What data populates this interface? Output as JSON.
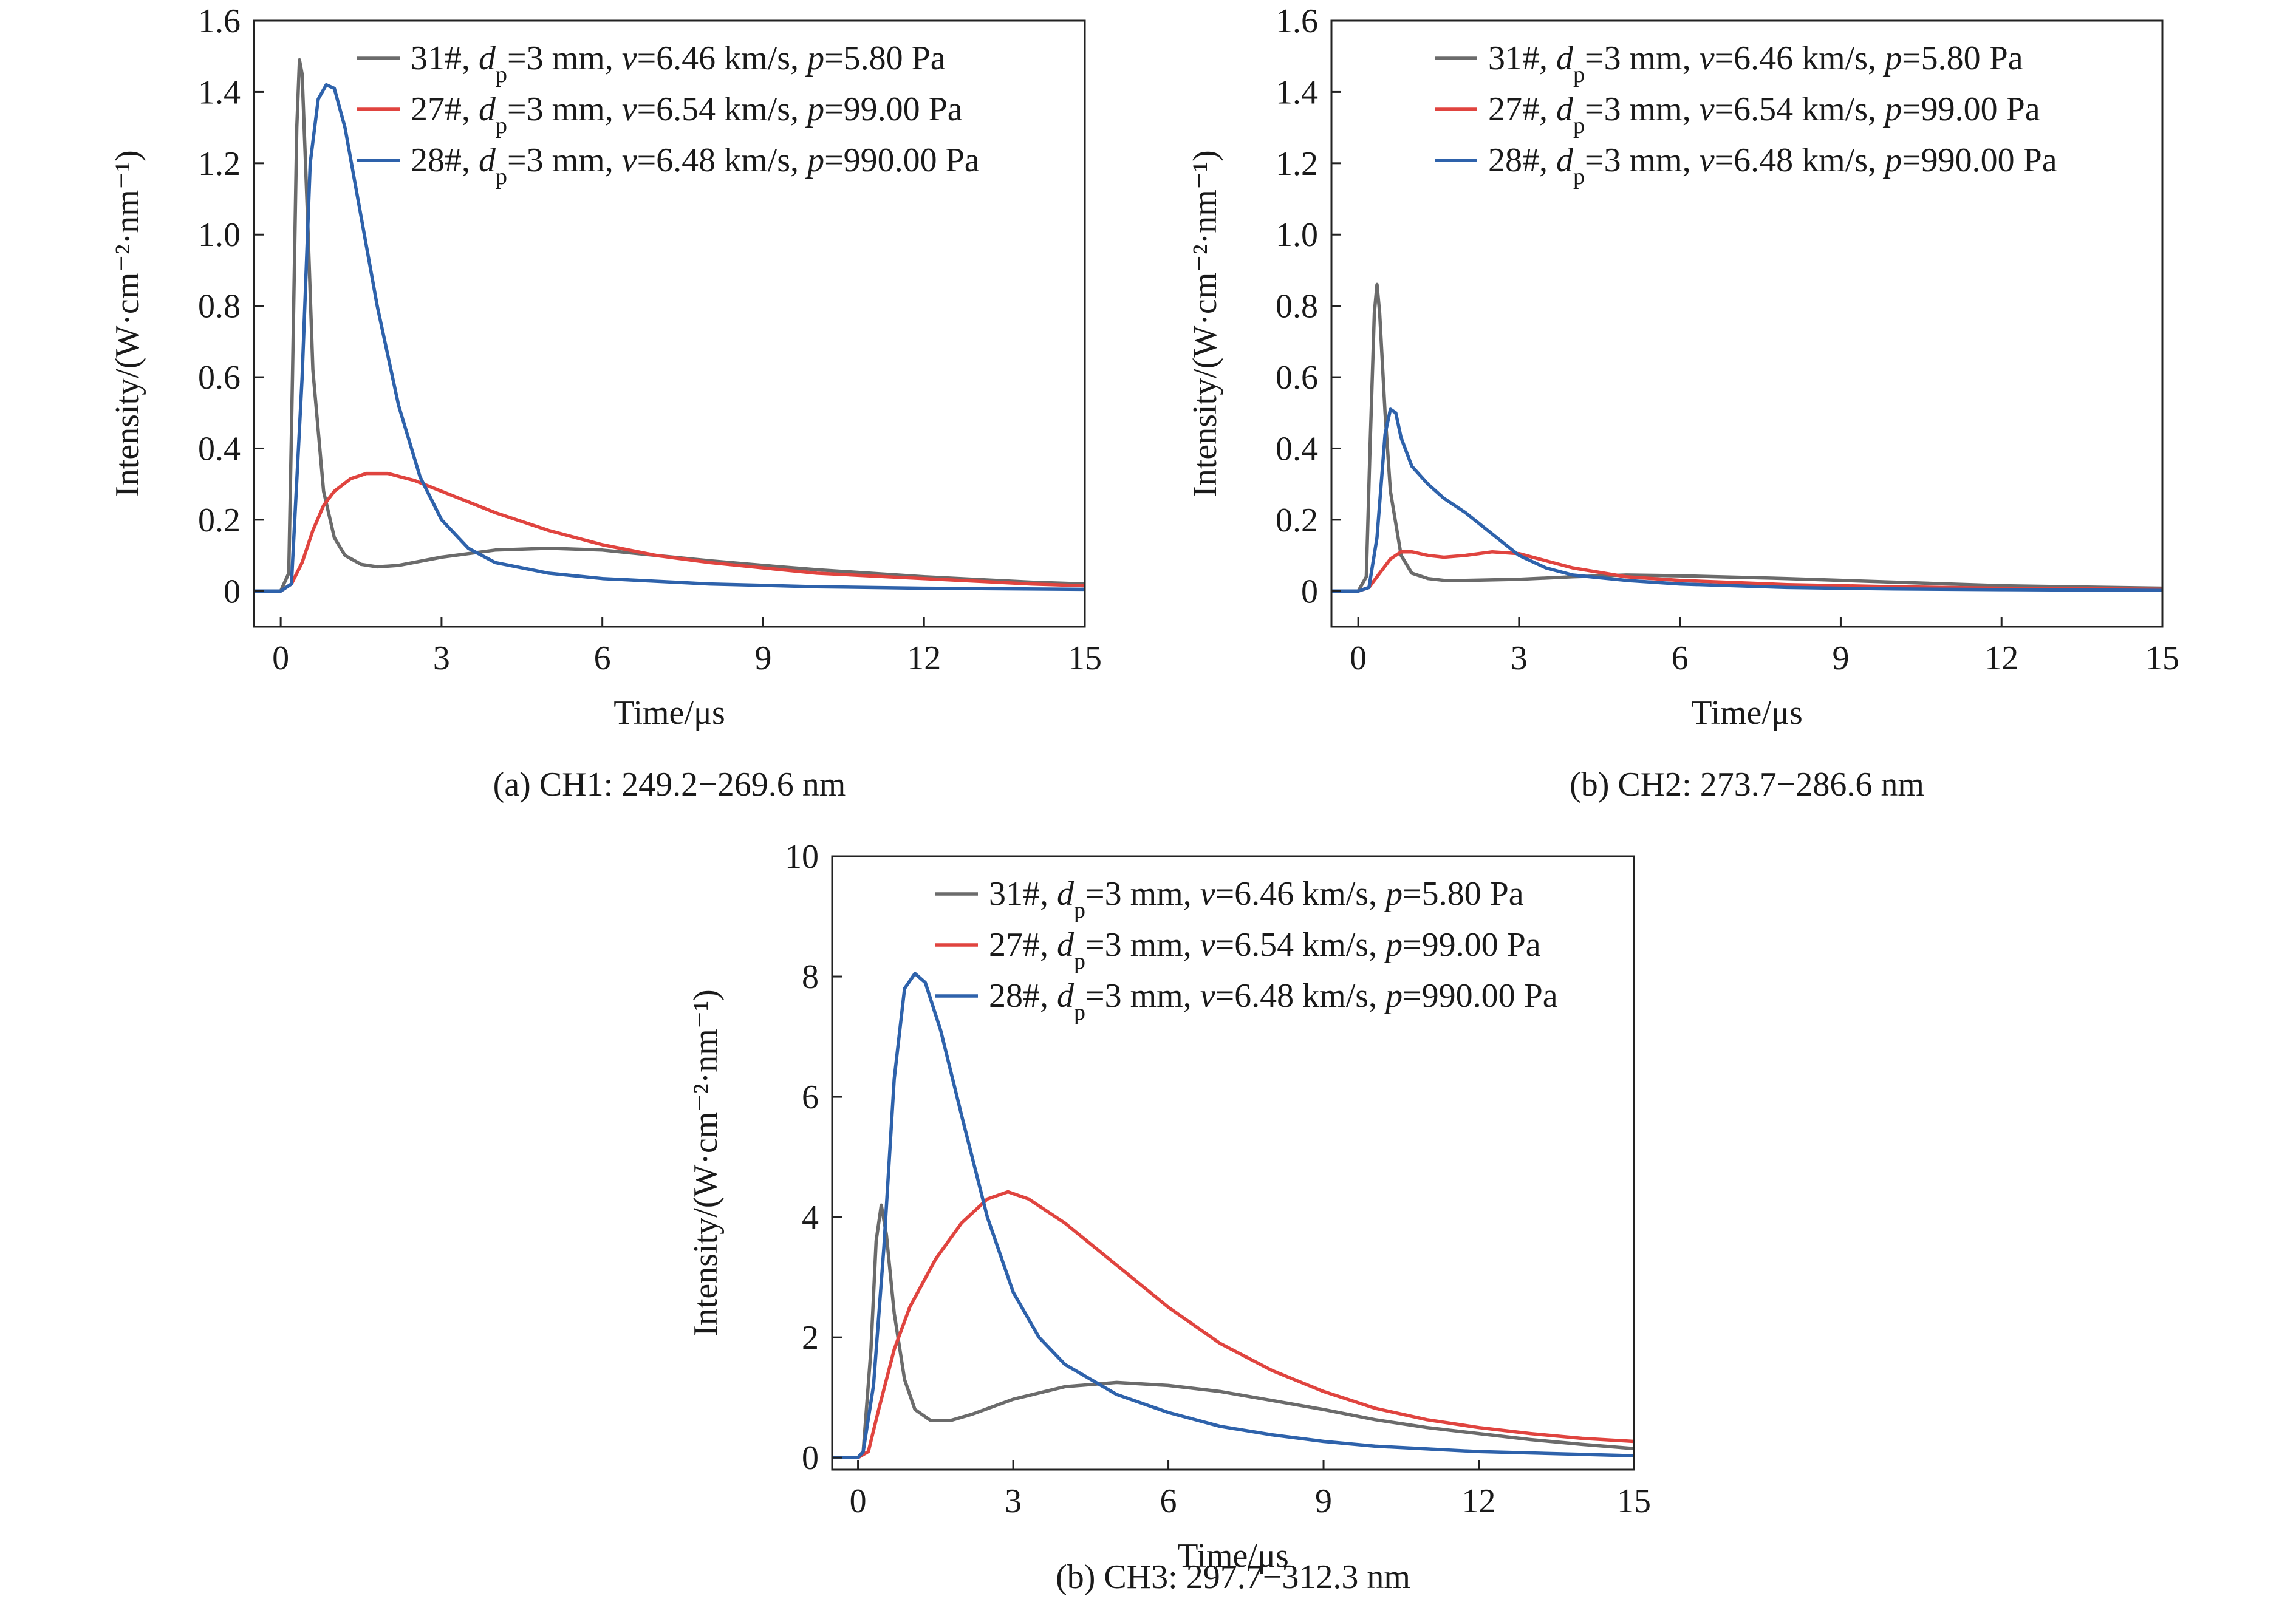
{
  "chart_data": [
    {
      "type": "line",
      "caption": "(a) CH1: 249.2−269.6 nm",
      "xlabel": "Time/μs",
      "ylabel": "Intensity/(W·cm⁻²·nm⁻¹)",
      "xlim": [
        -0.5,
        15
      ],
      "ylim": [
        -0.1,
        1.6
      ],
      "xticks": [
        0,
        3,
        6,
        9,
        12,
        15
      ],
      "yticks": [
        0,
        0.2,
        0.4,
        0.6,
        0.8,
        1.0,
        1.2,
        1.4,
        1.6
      ],
      "ytick_labels": [
        "0",
        "0.2",
        "0.4",
        "0.6",
        "0.8",
        "1.0",
        "1.2",
        "1.4",
        "1.6"
      ],
      "legend": "top-right",
      "series": [
        {
          "id": "s31",
          "color": "#6b6b6b",
          "x": [
            -0.5,
            0,
            0.15,
            0.22,
            0.3,
            0.35,
            0.4,
            0.5,
            0.6,
            0.8,
            1.0,
            1.2,
            1.5,
            1.8,
            2.2,
            3,
            4,
            5,
            6,
            7,
            8,
            9,
            10,
            12,
            14,
            15
          ],
          "y": [
            0,
            0,
            0.05,
            0.6,
            1.3,
            1.49,
            1.45,
            1.05,
            0.62,
            0.28,
            0.15,
            0.1,
            0.075,
            0.068,
            0.072,
            0.095,
            0.115,
            0.12,
            0.115,
            0.1,
            0.085,
            0.072,
            0.06,
            0.04,
            0.025,
            0.02
          ]
        },
        {
          "id": "s27",
          "color": "#e0443f",
          "x": [
            -0.5,
            0,
            0.2,
            0.4,
            0.6,
            0.8,
            1.0,
            1.3,
            1.6,
            2.0,
            2.5,
            3,
            4,
            5,
            6,
            7,
            8,
            9,
            10,
            12,
            14,
            15
          ],
          "y": [
            0,
            0,
            0.02,
            0.08,
            0.17,
            0.24,
            0.28,
            0.315,
            0.33,
            0.33,
            0.31,
            0.28,
            0.22,
            0.17,
            0.13,
            0.1,
            0.08,
            0.065,
            0.05,
            0.035,
            0.02,
            0.015
          ]
        },
        {
          "id": "s28",
          "color": "#2e62ab",
          "x": [
            -0.5,
            0,
            0.2,
            0.4,
            0.55,
            0.7,
            0.85,
            1.0,
            1.2,
            1.5,
            1.8,
            2.2,
            2.6,
            3,
            3.5,
            4,
            5,
            6,
            8,
            10,
            12,
            15
          ],
          "y": [
            0,
            0,
            0.02,
            0.6,
            1.2,
            1.38,
            1.42,
            1.41,
            1.3,
            1.05,
            0.8,
            0.52,
            0.32,
            0.2,
            0.12,
            0.08,
            0.05,
            0.035,
            0.02,
            0.012,
            0.008,
            0.005
          ]
        }
      ],
      "legend_entries": [
        {
          "series": "s31",
          "prefix": "31#, ",
          "d": "d",
          "sub": "p",
          "mid": "=3 mm, ",
          "v": "v",
          "vtext": "=6.46 km/s, ",
          "p": "p",
          "ptext": "=5.80 Pa"
        },
        {
          "series": "s27",
          "prefix": "27#, ",
          "d": "d",
          "sub": "p",
          "mid": "=3 mm, ",
          "v": "v",
          "vtext": "=6.54 km/s, ",
          "p": "p",
          "ptext": "=99.00 Pa"
        },
        {
          "series": "s28",
          "prefix": "28#, ",
          "d": "d",
          "sub": "p",
          "mid": "=3 mm, ",
          "v": "v",
          "vtext": "=6.48 km/s, ",
          "p": "p",
          "ptext": "=990.00 Pa"
        }
      ]
    },
    {
      "type": "line",
      "caption": "(b) CH2: 273.7−286.6 nm",
      "xlabel": "Time/μs",
      "ylabel": "Intensity/(W·cm⁻²·nm⁻¹)",
      "xlim": [
        -0.5,
        15
      ],
      "ylim": [
        -0.1,
        1.6
      ],
      "xticks": [
        0,
        3,
        6,
        9,
        12,
        15
      ],
      "yticks": [
        0,
        0.2,
        0.4,
        0.6,
        0.8,
        1.0,
        1.2,
        1.4,
        1.6
      ],
      "ytick_labels": [
        "0",
        "0.2",
        "0.4",
        "0.6",
        "0.8",
        "1.0",
        "1.2",
        "1.4",
        "1.6"
      ],
      "legend": "top-right",
      "series": [
        {
          "id": "s31",
          "color": "#6b6b6b",
          "x": [
            -0.5,
            0,
            0.15,
            0.22,
            0.3,
            0.35,
            0.4,
            0.5,
            0.6,
            0.8,
            1.0,
            1.3,
            1.6,
            2,
            3,
            4,
            5,
            6,
            8,
            10,
            12,
            15
          ],
          "y": [
            0,
            0,
            0.04,
            0.4,
            0.78,
            0.86,
            0.78,
            0.5,
            0.28,
            0.1,
            0.05,
            0.035,
            0.03,
            0.03,
            0.033,
            0.04,
            0.045,
            0.043,
            0.035,
            0.025,
            0.015,
            0.008
          ]
        },
        {
          "id": "s27",
          "color": "#e0443f",
          "x": [
            -0.5,
            0,
            0.2,
            0.4,
            0.6,
            0.8,
            1.0,
            1.3,
            1.6,
            2.0,
            2.5,
            3,
            3.5,
            4,
            5,
            6,
            8,
            10,
            12,
            15
          ],
          "y": [
            0,
            0,
            0.01,
            0.05,
            0.09,
            0.11,
            0.11,
            0.1,
            0.095,
            0.1,
            0.11,
            0.105,
            0.085,
            0.065,
            0.04,
            0.03,
            0.018,
            0.012,
            0.008,
            0.005
          ]
        },
        {
          "id": "s28",
          "color": "#2e62ab",
          "x": [
            -0.5,
            0,
            0.2,
            0.35,
            0.5,
            0.6,
            0.7,
            0.8,
            1.0,
            1.3,
            1.6,
            2.0,
            2.5,
            3,
            3.5,
            4,
            5,
            6,
            8,
            10,
            12,
            15
          ],
          "y": [
            0,
            0,
            0.01,
            0.15,
            0.44,
            0.51,
            0.5,
            0.43,
            0.35,
            0.3,
            0.26,
            0.22,
            0.16,
            0.1,
            0.065,
            0.045,
            0.03,
            0.02,
            0.01,
            0.006,
            0.004,
            0.002
          ]
        }
      ],
      "legend_entries": [
        {
          "series": "s31",
          "prefix": "31#, ",
          "d": "d",
          "sub": "p",
          "mid": "=3 mm, ",
          "v": "v",
          "vtext": "=6.46 km/s, ",
          "p": "p",
          "ptext": "=5.80 Pa"
        },
        {
          "series": "s27",
          "prefix": "27#, ",
          "d": "d",
          "sub": "p",
          "mid": "=3 mm, ",
          "v": "v",
          "vtext": "=6.54 km/s, ",
          "p": "p",
          "ptext": "=99.00 Pa"
        },
        {
          "series": "s28",
          "prefix": "28#, ",
          "d": "d",
          "sub": "p",
          "mid": "=3 mm, ",
          "v": "v",
          "vtext": "=6.48 km/s, ",
          "p": "p",
          "ptext": "=990.00 Pa"
        }
      ]
    },
    {
      "type": "line",
      "caption": "(b) CH3: 297.7−312.3 nm",
      "xlabel": "Time/μs",
      "ylabel": "Intensity/(W·cm⁻²·nm⁻¹)",
      "xlim": [
        -0.5,
        15
      ],
      "ylim": [
        -0.2,
        10
      ],
      "xticks": [
        0,
        3,
        6,
        9,
        12,
        15
      ],
      "yticks": [
        0,
        2,
        4,
        6,
        8,
        10
      ],
      "ytick_labels": [
        "0",
        "2",
        "4",
        "6",
        "8",
        "10"
      ],
      "legend": "top-right",
      "series": [
        {
          "id": "s31",
          "color": "#6b6b6b",
          "x": [
            -0.5,
            0,
            0.1,
            0.25,
            0.35,
            0.45,
            0.55,
            0.7,
            0.9,
            1.1,
            1.4,
            1.8,
            2.2,
            3,
            4,
            5,
            6,
            7,
            8,
            9,
            10,
            11,
            12,
            13,
            14,
            15
          ],
          "y": [
            0,
            0,
            0.1,
            1.8,
            3.6,
            4.2,
            3.7,
            2.4,
            1.3,
            0.8,
            0.62,
            0.62,
            0.72,
            0.97,
            1.18,
            1.25,
            1.2,
            1.1,
            0.95,
            0.8,
            0.63,
            0.5,
            0.4,
            0.3,
            0.22,
            0.15
          ]
        },
        {
          "id": "s27",
          "color": "#e0443f",
          "x": [
            -0.5,
            0,
            0.2,
            0.4,
            0.7,
            1.0,
            1.5,
            2.0,
            2.5,
            2.9,
            3.3,
            4,
            5,
            6,
            7,
            8,
            9,
            10,
            11,
            12,
            13,
            14,
            15
          ],
          "y": [
            0,
            0,
            0.1,
            0.8,
            1.8,
            2.5,
            3.3,
            3.9,
            4.3,
            4.42,
            4.3,
            3.9,
            3.2,
            2.5,
            1.9,
            1.45,
            1.1,
            0.82,
            0.63,
            0.5,
            0.4,
            0.32,
            0.27
          ]
        },
        {
          "id": "s28",
          "color": "#2e62ab",
          "x": [
            -0.5,
            0,
            0.1,
            0.3,
            0.5,
            0.7,
            0.9,
            1.1,
            1.3,
            1.6,
            2.0,
            2.5,
            3,
            3.5,
            4,
            5,
            6,
            7,
            8,
            9,
            10,
            12,
            15
          ],
          "y": [
            0,
            0,
            0.1,
            1.2,
            3.5,
            6.3,
            7.8,
            8.05,
            7.9,
            7.1,
            5.7,
            4.0,
            2.75,
            2.0,
            1.55,
            1.05,
            0.75,
            0.52,
            0.38,
            0.27,
            0.19,
            0.1,
            0.03
          ]
        }
      ],
      "legend_entries": [
        {
          "series": "s31",
          "prefix": "31#, ",
          "d": "d",
          "sub": "p",
          "mid": "=3 mm, ",
          "v": "v",
          "vtext": "=6.46 km/s, ",
          "p": "p",
          "ptext": "=5.80 Pa"
        },
        {
          "series": "s27",
          "prefix": "27#, ",
          "d": "d",
          "sub": "p",
          "mid": "=3 mm, ",
          "v": "v",
          "vtext": "=6.54 km/s, ",
          "p": "p",
          "ptext": "=99.00 Pa"
        },
        {
          "series": "s28",
          "prefix": "28#, ",
          "d": "d",
          "sub": "p",
          "mid": "=3 mm, ",
          "v": "v",
          "vtext": "=6.48 km/s, ",
          "p": "p",
          "ptext": "=990.00 Pa"
        }
      ]
    }
  ]
}
